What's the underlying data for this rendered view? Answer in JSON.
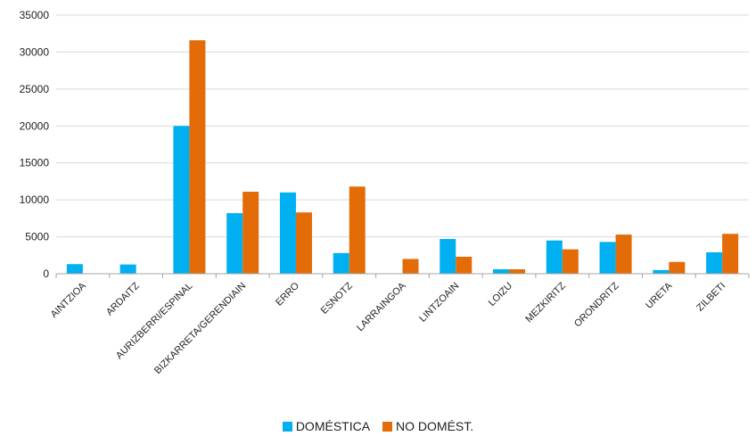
{
  "chart_data": {
    "type": "bar",
    "categories": [
      "AINTZIOA",
      "ARDAITZ",
      "AURIZBERRI/ESPINAL",
      "BIZKARRETA/GERENDIAIN",
      "ERRO",
      "ESNOTZ",
      "LARRAINGOA",
      "LINTZOAIN",
      "LOIZU",
      "MEZKIRITZ",
      "ORONDRITZ",
      "URETA",
      "ZILBETI"
    ],
    "series": [
      {
        "name": "DOMÉSTICA",
        "color": "#00B0F0",
        "values": [
          1300,
          1250,
          20000,
          8200,
          11000,
          2800,
          0,
          4700,
          600,
          4500,
          4300,
          500,
          2900
        ]
      },
      {
        "name": "NO DOMÉST.",
        "color": "#E36C09",
        "values": [
          0,
          0,
          31600,
          11100,
          8300,
          11800,
          2000,
          2300,
          600,
          3300,
          5300,
          1600,
          5400
        ]
      }
    ],
    "ylim": [
      0,
      35000
    ],
    "yticks": [
      0,
      5000,
      10000,
      15000,
      20000,
      25000,
      30000,
      35000
    ],
    "grid": true,
    "legend": "bottom"
  }
}
